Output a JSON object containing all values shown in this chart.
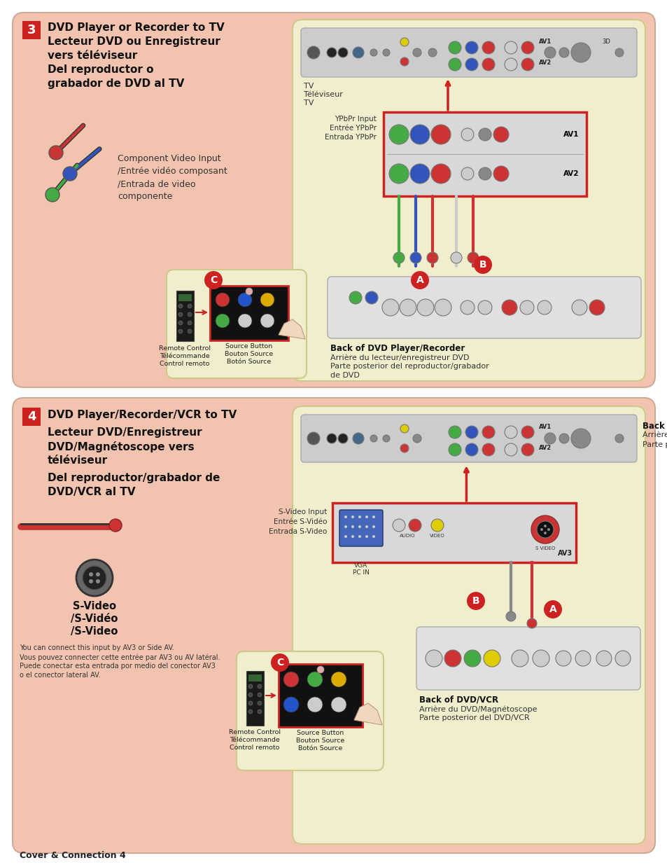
{
  "page_bg": "#ffffff",
  "top_section_bg": "#f2c4b0",
  "bottom_section_bg": "#f2c4b0",
  "yellow_box_bg": "#f0eecc",
  "number_box_color": "#cc2222",
  "footer_text": "Cover & Connection 4",
  "section3": {
    "number": "3",
    "title_line1": "DVD Player or Recorder to TV",
    "title_line2": "Lecteur DVD ou Enregistreur",
    "title_line3": "vers téléviseur",
    "title_line4": "Del reproductor o",
    "title_line5": "grabador de DVD al TV",
    "cable_label_line1": "Component Video Input",
    "cable_label_line2": "/Entrée vidéo composant",
    "cable_label_line3": "/Entrada de video",
    "cable_label_line4": "componente",
    "tv_label1": "TV",
    "tv_label2": "Téléviseur",
    "tv_label3": "TV",
    "ypbpr_label1": "YPbPr Input",
    "ypbpr_label2": "Entrée YPbPr",
    "ypbpr_label3": "Entrada YPbPr",
    "back_dvd_label1": "Back of DVD Player/Recorder",
    "back_dvd_label2": "Arrière du lecteur/enregistreur DVD",
    "back_dvd_label3": "Parte posterior del reproductor/grabador",
    "back_dvd_label4": "de DVD",
    "remote_label1": "Remote Control",
    "remote_label2": "Télécommande",
    "remote_label3": "Control remoto",
    "source_label1": "Source Button",
    "source_label2": "Bouton Source",
    "source_label3": "Botón Source"
  },
  "section4": {
    "number": "4",
    "title_line1": "DVD Player/Recorder/VCR to TV",
    "title_line2": "Lecteur DVD/Enregistreur",
    "title_line3": "DVD/Magnétoscope vers",
    "title_line4": "téléviseur",
    "title_line5": "Del reproductor/grabador de",
    "title_line6": "DVD/VCR al TV",
    "cable_label1": "S-Video",
    "cable_label2": "/S-Vidéo",
    "cable_label3": "/S-Video",
    "note_line1": "You can connect this input by AV3 or Side AV.",
    "note_line2": "Vous pouvez connecter cette entrée par AV3 ou AV latéral.",
    "note_line3": "Puede conectar esta entrada por medio del conector AV3",
    "note_line4": "o el conector lateral AV.",
    "back_tv_label1": "Back of TV",
    "back_tv_label2": "Arrière du Téléviseur",
    "back_tv_label3": "Parte posterior del TV",
    "svideo_input_label1": "S-Video Input",
    "svideo_input_label2": "Entrée S-Vidéo",
    "svideo_input_label3": "Entrada S-Video",
    "back_dvd_label1": "Back of DVD/VCR",
    "back_dvd_label2": "Arrière du DVD/Magnétoscope",
    "back_dvd_label3": "Parte posterior del DVD/VCR",
    "remote_label1": "Remote Control",
    "remote_label2": "Télécommande",
    "remote_label3": "Control remoto",
    "source_label1": "Source Button",
    "source_label2": "Bouton Source",
    "source_label3": "Botón Source"
  }
}
